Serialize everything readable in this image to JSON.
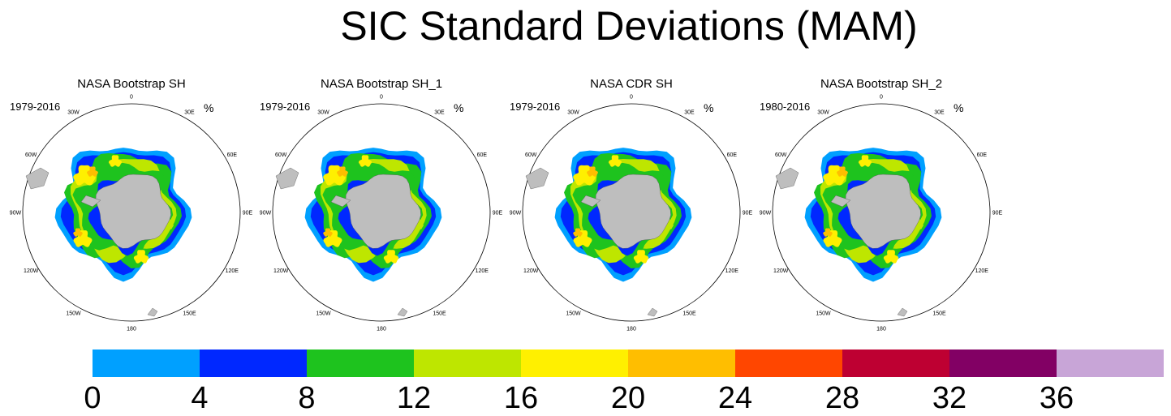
{
  "chart_data": {
    "type": "heatmap",
    "title": "SIC Standard Deviations (MAM)",
    "projection": "south-polar-stereographic",
    "unit": "%",
    "panels": [
      {
        "title": "NASA Bootstrap SH",
        "period": "1979-2016"
      },
      {
        "title": "NASA Bootstrap SH_1",
        "period": "1979-2016"
      },
      {
        "title": "NASA CDR SH",
        "period": "1979-2016"
      },
      {
        "title": "NASA Bootstrap SH_2",
        "period": "1980-2016"
      }
    ],
    "longitude_labels": [
      "0",
      "30E",
      "60E",
      "90E",
      "120E",
      "150E",
      "180",
      "150W",
      "120W",
      "90W",
      "60W",
      "30W"
    ],
    "colorbar": {
      "levels": [
        0,
        4,
        8,
        12,
        16,
        20,
        24,
        28,
        32,
        36,
        40
      ],
      "tick_labels": [
        "0",
        "4",
        "8",
        "12",
        "16",
        "20",
        "24",
        "28",
        "32",
        "36"
      ],
      "colors": [
        "#00a0ff",
        "#0028ff",
        "#1ec31e",
        "#bee600",
        "#fff000",
        "#ffbe00",
        "#ff4600",
        "#be0032",
        "#820064",
        "#c8a5d7"
      ]
    },
    "land_color": "#bebebe"
  }
}
